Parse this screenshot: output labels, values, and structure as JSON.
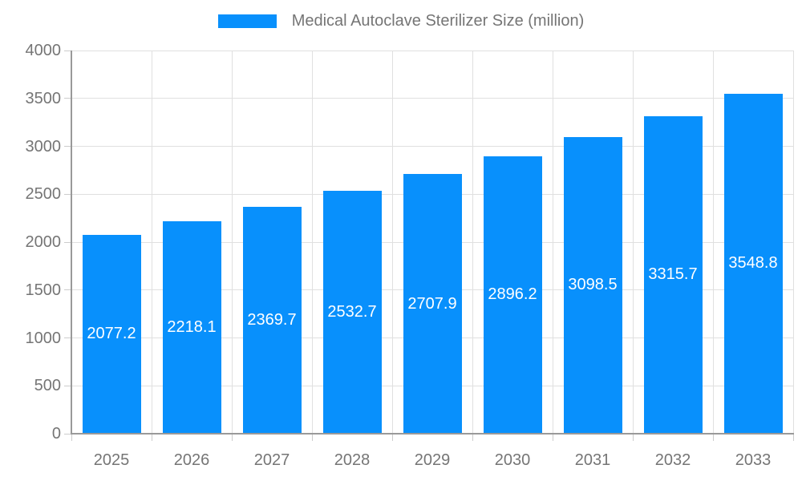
{
  "legend": {
    "label": "Medical Autoclave Sterilizer Size (million)"
  },
  "chart_data": {
    "type": "bar",
    "title": "Medical Autoclave Sterilizer Size (million)",
    "categories": [
      "2025",
      "2026",
      "2027",
      "2028",
      "2029",
      "2030",
      "2031",
      "2032",
      "2033"
    ],
    "values": [
      2077.2,
      2218.1,
      2369.7,
      2532.7,
      2707.9,
      2896.2,
      3098.5,
      3315.7,
      3548.8
    ],
    "series_name": "Medical Autoclave Sterilizer Size (million)",
    "xlabel": "",
    "ylabel": "",
    "ylim": [
      0,
      4000
    ],
    "yticks": [
      0,
      500,
      1000,
      1500,
      2000,
      2500,
      3000,
      3500,
      4000
    ],
    "grid": true,
    "legend_position": "top",
    "value_label_position": "inside-center",
    "colors": {
      "bar": "#0890fc",
      "value_label": "#ffffff",
      "axis": "#999999",
      "grid": "#e0e0e0",
      "tick": "#cccccc",
      "axis_label": "#757575"
    }
  }
}
